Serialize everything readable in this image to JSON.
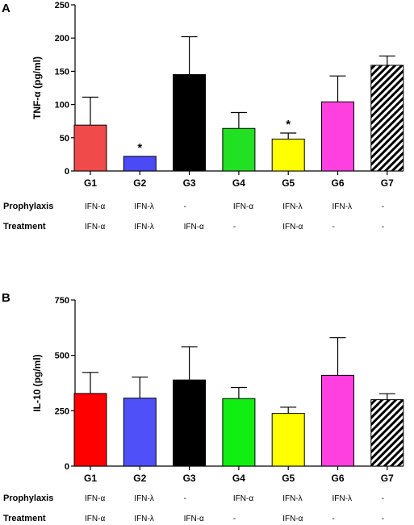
{
  "chart_data": [
    {
      "panel": "A",
      "type": "bar",
      "ylabel": "TNF-α (pg/ml)",
      "ylim": [
        0,
        250
      ],
      "yticks": [
        0,
        50,
        100,
        150,
        200,
        250
      ],
      "categories": [
        "G1",
        "G2",
        "G3",
        "G4",
        "G5",
        "G6",
        "G7"
      ],
      "values": [
        69,
        22,
        145,
        64,
        48,
        104,
        159
      ],
      "errors": [
        42,
        0,
        57,
        24,
        9,
        39,
        14
      ],
      "colors": [
        "#f04a4a",
        "#4a4af6",
        "#000000",
        "#22e022",
        "#ffff00",
        "#ff40e0",
        "hatch"
      ],
      "significance": [
        "",
        "*",
        "",
        "",
        "*",
        "",
        ""
      ],
      "rows": [
        {
          "label": "Prophylaxis",
          "cells": [
            "IFN-α",
            "IFN-λ",
            "-",
            "IFN-α",
            "IFN-λ",
            "IFN-λ",
            "-"
          ]
        },
        {
          "label": "Treatment",
          "cells": [
            "IFN-α",
            "IFN-λ",
            "IFN-α",
            "-",
            "IFN-α",
            "-",
            "-"
          ]
        }
      ]
    },
    {
      "panel": "B",
      "type": "bar",
      "ylabel": "IL-10 (pg/ml)",
      "ylim": [
        0,
        750
      ],
      "yticks": [
        0,
        250,
        500,
        750
      ],
      "categories": [
        "G1",
        "G2",
        "G3",
        "G4",
        "G5",
        "G6",
        "G7"
      ],
      "values": [
        328,
        307,
        389,
        305,
        238,
        410,
        300
      ],
      "errors": [
        95,
        95,
        150,
        50,
        28,
        170,
        27
      ],
      "colors": [
        "#ff0000",
        "#5050f8",
        "#000000",
        "#11ee11",
        "#ffff00",
        "#ff40e0",
        "hatch"
      ],
      "significance": [
        "",
        "",
        "",
        "",
        "",
        "",
        ""
      ],
      "rows": [
        {
          "label": "Prophylaxis",
          "cells": [
            "IFN-α",
            "IFN-λ",
            "-",
            "IFN-α",
            "IFN-λ",
            "IFN-λ",
            "-"
          ]
        },
        {
          "label": "Treatment",
          "cells": [
            "IFN-α",
            "IFN-λ",
            "IFN-α",
            "-",
            "IFN-α",
            "-",
            "-"
          ]
        }
      ]
    }
  ]
}
